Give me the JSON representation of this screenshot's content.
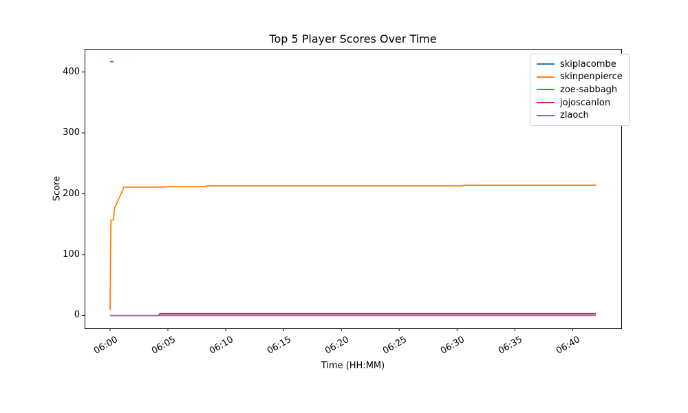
{
  "figure": {
    "background": "#ffffff",
    "text_color": "#000000",
    "legend_border_color": "#cccccc"
  },
  "chart_data": {
    "type": "line",
    "title": "Top 5 Player Scores Over Time",
    "xlabel": "Time (HH:MM)",
    "ylabel": "Score",
    "grid": false,
    "legend_position": "upper right",
    "x_unit": "minutes after 06:00",
    "xlim": [
      -2.2,
      44.2
    ],
    "ylim": [
      -21,
      438
    ],
    "y_ticks": [
      0,
      100,
      200,
      300,
      400
    ],
    "x_ticks": [
      {
        "t": 0,
        "label": "06:00"
      },
      {
        "t": 5,
        "label": "06:05"
      },
      {
        "t": 10,
        "label": "06:10"
      },
      {
        "t": 15,
        "label": "06:15"
      },
      {
        "t": 20,
        "label": "06:20"
      },
      {
        "t": 25,
        "label": "06:25"
      },
      {
        "t": 30,
        "label": "06:30"
      },
      {
        "t": 35,
        "label": "06:35"
      },
      {
        "t": 40,
        "label": "06:40"
      }
    ],
    "series": [
      {
        "name": "skiplacombe",
        "color": "#1f77b4",
        "points": [
          [
            0,
            417
          ],
          [
            0.3,
            417
          ]
        ]
      },
      {
        "name": "skinpenpierce",
        "color": "#ff7f0e",
        "points": [
          [
            0,
            9
          ],
          [
            0.08,
            157
          ],
          [
            0.28,
            157
          ],
          [
            0.32,
            163
          ],
          [
            0.38,
            176
          ],
          [
            1.2,
            211
          ],
          [
            4.9,
            211
          ],
          [
            5.0,
            212
          ],
          [
            8.3,
            212
          ],
          [
            8.4,
            213
          ],
          [
            30.5,
            213
          ],
          [
            30.6,
            214
          ],
          [
            42,
            214
          ]
        ]
      },
      {
        "name": "zoe-sabbagh",
        "color": "#2ca02c",
        "points": [
          [
            0,
            0
          ],
          [
            4.2,
            0
          ],
          [
            4.3,
            3
          ],
          [
            42,
            3
          ]
        ]
      },
      {
        "name": "jojoscanlon",
        "color": "#d62728",
        "points": [
          [
            0,
            0
          ],
          [
            4.2,
            0
          ],
          [
            4.3,
            3
          ],
          [
            42,
            3
          ]
        ]
      },
      {
        "name": "zlaoch",
        "color": "#9467bd",
        "points": [
          [
            0,
            0
          ],
          [
            42,
            0
          ]
        ]
      }
    ]
  }
}
